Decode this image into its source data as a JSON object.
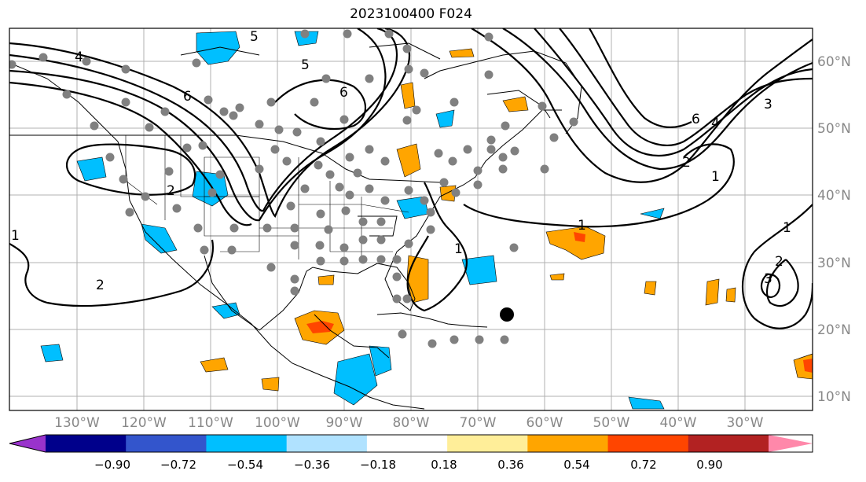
{
  "title": "2023100400 F024",
  "map": {
    "lon_labels": [
      "130°W",
      "120°W",
      "110°W",
      "100°W",
      "90°W",
      "80°W",
      "70°W",
      "60°W",
      "50°W",
      "40°W",
      "30°W"
    ],
    "lat_labels": [
      "60°N",
      "50°N",
      "40°N",
      "30°N",
      "20°N",
      "10°N"
    ],
    "contour_labels": [
      "4",
      "5",
      "6",
      "5",
      "6",
      "6",
      "4",
      "3",
      "2",
      "1",
      "1",
      "2",
      "1",
      "1",
      "1",
      "2",
      "3",
      "2"
    ],
    "colors": {
      "light_blue": "#00bfff",
      "orange": "#ffa500",
      "red_orange": "#ff4500",
      "gridline": "#b0b0b0",
      "dots": "#808080"
    }
  },
  "colorbar": {
    "ticks": [
      "−0.90",
      "−0.72",
      "−0.54",
      "−0.36",
      "−0.18",
      "0.18",
      "0.36",
      "0.54",
      "0.72",
      "0.90"
    ],
    "colors": [
      "#9933cc",
      "#00008b",
      "#3355cc",
      "#00bfff",
      "#b0e2ff",
      "#ffffff",
      "#ffee99",
      "#ffa500",
      "#ff4500",
      "#b22222",
      "#ff88aa"
    ]
  }
}
